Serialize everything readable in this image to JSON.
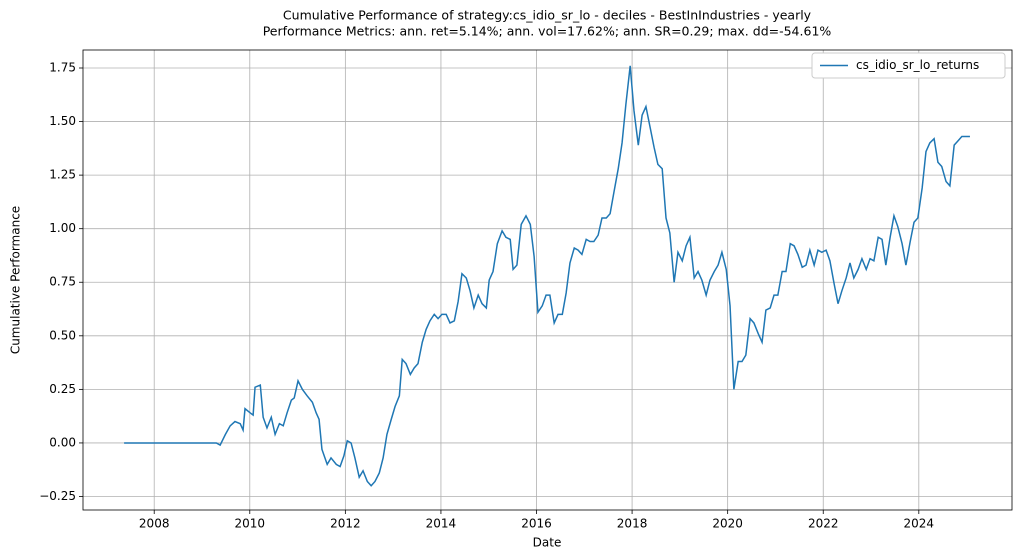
{
  "chart_data": {
    "type": "line",
    "title": "Cumulative Performance of strategy:cs_idio_sr_lo - deciles - BestInIndustries - yearly",
    "subtitle": "Performance Metrics: ann. ret=5.14%; ann. vol=17.62%; ann. SR=0.29; max. dd=-54.61%",
    "xlabel": "Date",
    "ylabel": "Cumulative Performance",
    "x": [
      2007.37,
      2009.3,
      2009.38,
      2009.49,
      2009.59,
      2009.69,
      2009.8,
      2009.86,
      2009.9,
      2010.01,
      2010.07,
      2010.11,
      2010.22,
      2010.28,
      2010.36,
      2010.45,
      2010.53,
      2010.62,
      2010.7,
      2010.78,
      2010.87,
      2010.93,
      2011.01,
      2011.1,
      2011.2,
      2011.31,
      2011.39,
      2011.45,
      2011.51,
      2011.62,
      2011.7,
      2011.81,
      2011.89,
      2011.97,
      2012.04,
      2012.12,
      2012.2,
      2012.29,
      2012.37,
      2012.46,
      2012.54,
      2012.62,
      2012.71,
      2012.79,
      2012.87,
      2012.96,
      2013.04,
      2013.13,
      2013.19,
      2013.27,
      2013.36,
      2013.44,
      2013.52,
      2013.61,
      2013.69,
      2013.77,
      2013.86,
      2013.94,
      2014.02,
      2014.11,
      2014.19,
      2014.28,
      2014.36,
      2014.44,
      2014.53,
      2014.61,
      2014.69,
      2014.78,
      2014.86,
      2014.95,
      2015.01,
      2015.09,
      2015.18,
      2015.28,
      2015.36,
      2015.45,
      2015.51,
      2015.59,
      2015.68,
      2015.78,
      2015.87,
      2015.95,
      2016.03,
      2016.12,
      2016.2,
      2016.28,
      2016.37,
      2016.45,
      2016.54,
      2016.62,
      2016.7,
      2016.79,
      2016.87,
      2016.95,
      2017.04,
      2017.12,
      2017.2,
      2017.29,
      2017.37,
      2017.46,
      2017.54,
      2017.62,
      2017.71,
      2017.79,
      2017.87,
      2017.96,
      2018.04,
      2018.13,
      2018.21,
      2018.29,
      2018.38,
      2018.46,
      2018.54,
      2018.63,
      2018.71,
      2018.79,
      2018.88,
      2018.96,
      2019.05,
      2019.13,
      2019.21,
      2019.3,
      2019.38,
      2019.46,
      2019.55,
      2019.63,
      2019.72,
      2019.8,
      2019.88,
      2019.97,
      2020.05,
      2020.13,
      2020.22,
      2020.3,
      2020.38,
      2020.47,
      2020.55,
      2020.64,
      2020.72,
      2020.8,
      2020.89,
      2020.97,
      2021.05,
      2021.14,
      2021.22,
      2021.31,
      2021.39,
      2021.47,
      2021.56,
      2021.64,
      2021.72,
      2021.81,
      2021.89,
      2021.97,
      2022.06,
      2022.14,
      2022.23,
      2022.31,
      2022.39,
      2022.48,
      2022.56,
      2022.64,
      2022.73,
      2022.81,
      2022.9,
      2022.98,
      2023.06,
      2023.15,
      2023.23,
      2023.31,
      2023.4,
      2023.48,
      2023.56,
      2023.65,
      2023.73,
      2023.82,
      2023.9,
      2023.98,
      2024.07,
      2024.15,
      2024.23,
      2024.32,
      2024.4,
      2024.48,
      2024.57,
      2024.65,
      2024.74,
      2024.82,
      2024.9,
      2024.99,
      2025.07
    ],
    "series": [
      {
        "name": "cs_idio_sr_lo_returns",
        "color": "#1f77b4",
        "values": [
          0,
          0,
          -0.01,
          0.04,
          0.08,
          0.1,
          0.09,
          0.06,
          0.16,
          0.14,
          0.13,
          0.26,
          0.27,
          0.12,
          0.07,
          0.12,
          0.04,
          0.09,
          0.08,
          0.14,
          0.2,
          0.21,
          0.29,
          0.25,
          0.22,
          0.19,
          0.14,
          0.11,
          -0.03,
          -0.1,
          -0.07,
          -0.1,
          -0.11,
          -0.06,
          0.01,
          0.0,
          -0.07,
          -0.16,
          -0.13,
          -0.18,
          -0.2,
          -0.18,
          -0.14,
          -0.07,
          0.04,
          0.11,
          0.17,
          0.22,
          0.39,
          0.37,
          0.32,
          0.35,
          0.37,
          0.47,
          0.53,
          0.57,
          0.6,
          0.58,
          0.6,
          0.6,
          0.56,
          0.57,
          0.66,
          0.79,
          0.77,
          0.71,
          0.63,
          0.69,
          0.65,
          0.63,
          0.76,
          0.8,
          0.93,
          0.99,
          0.96,
          0.95,
          0.81,
          0.83,
          1.02,
          1.06,
          1.02,
          0.87,
          0.61,
          0.64,
          0.69,
          0.69,
          0.56,
          0.6,
          0.6,
          0.7,
          0.84,
          0.91,
          0.9,
          0.88,
          0.95,
          0.94,
          0.94,
          0.97,
          1.05,
          1.05,
          1.07,
          1.17,
          1.28,
          1.4,
          1.58,
          1.76,
          1.55,
          1.39,
          1.53,
          1.57,
          1.47,
          1.38,
          1.3,
          1.28,
          1.05,
          0.98,
          0.75,
          0.89,
          0.85,
          0.92,
          0.96,
          0.77,
          0.8,
          0.76,
          0.69,
          0.76,
          0.8,
          0.83,
          0.89,
          0.81,
          0.64,
          0.25,
          0.38,
          0.38,
          0.41,
          0.58,
          0.56,
          0.51,
          0.47,
          0.62,
          0.63,
          0.69,
          0.69,
          0.8,
          0.8,
          0.93,
          0.92,
          0.88,
          0.82,
          0.83,
          0.9,
          0.83,
          0.9,
          0.89,
          0.9,
          0.85,
          0.74,
          0.65,
          0.71,
          0.77,
          0.84,
          0.77,
          0.81,
          0.86,
          0.81,
          0.86,
          0.85,
          0.96,
          0.95,
          0.83,
          0.96,
          1.06,
          1.01,
          0.93,
          0.83,
          0.94,
          1.03,
          1.05,
          1.19,
          1.36,
          1.4,
          1.42,
          1.31,
          1.29,
          1.22,
          1.2,
          1.39,
          1.41,
          1.43,
          1.43,
          1.43
        ]
      }
    ],
    "xlim": [
      2006.51,
      2025.95
    ],
    "ylim": [
      -0.313,
      1.834
    ],
    "xticks": [
      2008,
      2010,
      2012,
      2014,
      2016,
      2018,
      2020,
      2022,
      2024
    ],
    "yticks": [
      {
        "value": -0.25,
        "label": "−0.25"
      },
      {
        "value": 0,
        "label": "0.00"
      },
      0.25,
      {
        "value": 0.5,
        "label": "0.50"
      },
      0.75,
      {
        "value": 1,
        "label": "1.00"
      },
      1.25,
      {
        "value": 1.5,
        "label": "1.50"
      },
      1.75
    ],
    "grid": true,
    "legend": "upper right"
  }
}
